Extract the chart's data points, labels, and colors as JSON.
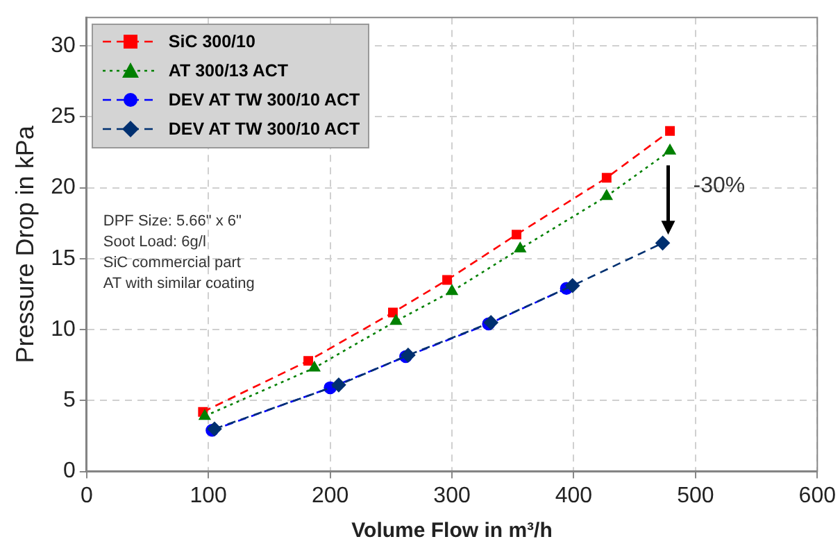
{
  "chart_data": {
    "type": "line",
    "xlabel": "Volume Flow in m³/h",
    "ylabel": "Pressure Drop in kPa",
    "xlim": [
      0,
      600
    ],
    "xticks": [
      0,
      100,
      200,
      300,
      400,
      500,
      600
    ],
    "ylim": [
      0,
      32
    ],
    "yticks": [
      0,
      5,
      10,
      15,
      20,
      25,
      30
    ],
    "grid": true,
    "legend": "top left",
    "series": [
      {
        "name": "SiC 300/10",
        "color": "#ff0000",
        "marker": "square",
        "line_style": "dashed",
        "x": [
          95.5,
          182,
          251.5,
          296,
          353,
          427,
          479
        ],
        "values": [
          4.2,
          7.8,
          11.2,
          13.5,
          16.7,
          20.7,
          24.0
        ]
      },
      {
        "name": "AT 300/13 ACT",
        "color": "#008000",
        "marker": "triangle",
        "line_style": "dotted",
        "x": [
          97,
          187,
          254,
          300,
          356,
          427,
          479
        ],
        "values": [
          3.9,
          7.3,
          10.6,
          12.7,
          15.7,
          19.4,
          22.6
        ]
      },
      {
        "name": "DEV AT TW 300/10 ACT",
        "color": "#0000ff",
        "marker": "circle",
        "line_style": "dashed",
        "x": [
          103,
          200,
          262,
          330,
          394
        ],
        "values": [
          2.9,
          5.9,
          8.1,
          10.4,
          12.9
        ]
      },
      {
        "name": "DEV AT TW 300/10 ACT",
        "color": "#003070",
        "marker": "diamond",
        "line_style": "dashed",
        "x": [
          105,
          207,
          264,
          332,
          399,
          473
        ],
        "values": [
          3.0,
          6.1,
          8.2,
          10.5,
          13.1,
          16.1
        ]
      }
    ],
    "annotations": [
      "DPF Size: 5.66\" x 6\"",
      "Soot Load: 6g/l",
      "SiC commercial part",
      "AT with similar coating",
      {
        "text": "-30%",
        "x": 473,
        "y": 16.1
      }
    ]
  }
}
